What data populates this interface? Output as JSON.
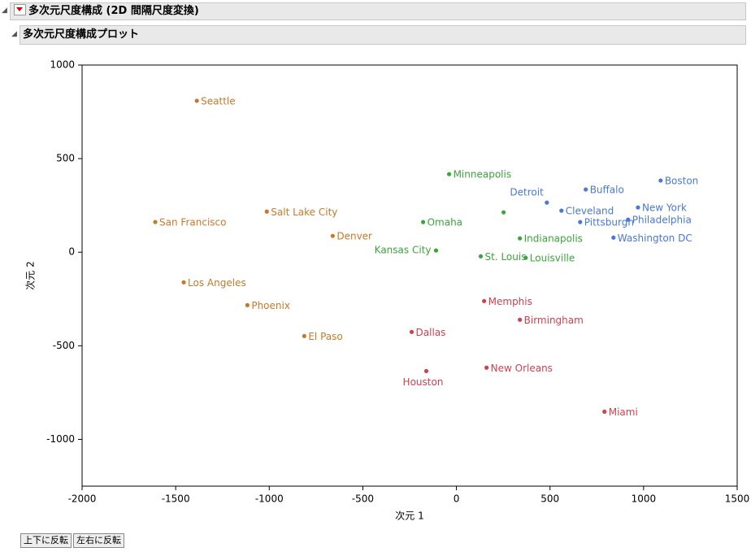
{
  "header": {
    "title": "多次元尺度構成 (2D 間隔尺度変換)",
    "subtitle": "多次元尺度構成プロット"
  },
  "buttons": [
    "上下に反転",
    "左右に反転"
  ],
  "chart_data": {
    "type": "scatter",
    "x_label": "次元 1",
    "y_label": "次元 2",
    "xlim": [
      -2000,
      1500
    ],
    "xticks": [
      -2000,
      -1500,
      -1000,
      -500,
      0,
      500,
      1000,
      1500
    ],
    "ylim": [
      -1250,
      1000
    ],
    "yticks": [
      -1000,
      -500,
      0,
      500,
      1000
    ],
    "series": [
      {
        "color": "#c8782a",
        "labels": [
          "Seattle",
          "San Francisco",
          "Salt Lake City",
          "Denver",
          "Los Angeles",
          "Phoenix",
          "El Paso"
        ],
        "x": [
          -1387,
          -1609,
          -1013,
          -661,
          -1457,
          -1117,
          -813
        ],
        "values": [
          809,
          161,
          217,
          87,
          -161,
          -283,
          -448
        ]
      },
      {
        "color": "#3aa53a",
        "labels": [
          "Minneapolis",
          "Omaha",
          "Kansas City",
          null,
          "Indianapolis",
          "St. Louis",
          "Louisville"
        ],
        "x": [
          -39,
          -178,
          -109,
          252,
          339,
          130,
          370
        ],
        "values": [
          417,
          161,
          9,
          213,
          74,
          -22,
          -30
        ]
      },
      {
        "color": "#4a78d6",
        "labels": [
          "Detroit",
          "Cleveland",
          "Buffalo",
          "Boston",
          "New York",
          "Pittsburgh",
          "Philadelphia",
          "Washington DC"
        ],
        "x": [
          483,
          561,
          691,
          1091,
          970,
          661,
          917,
          839
        ],
        "values": [
          265,
          222,
          335,
          383,
          239,
          161,
          174,
          78
        ]
      },
      {
        "color": "#d0404f",
        "labels": [
          "Memphis",
          "Birmingham",
          "Dallas",
          "Houston",
          "New Orleans",
          "Miami"
        ],
        "x": [
          148,
          339,
          -239,
          -161,
          161,
          791
        ],
        "values": [
          -261,
          -361,
          -426,
          -635,
          -617,
          -852
        ]
      }
    ]
  }
}
